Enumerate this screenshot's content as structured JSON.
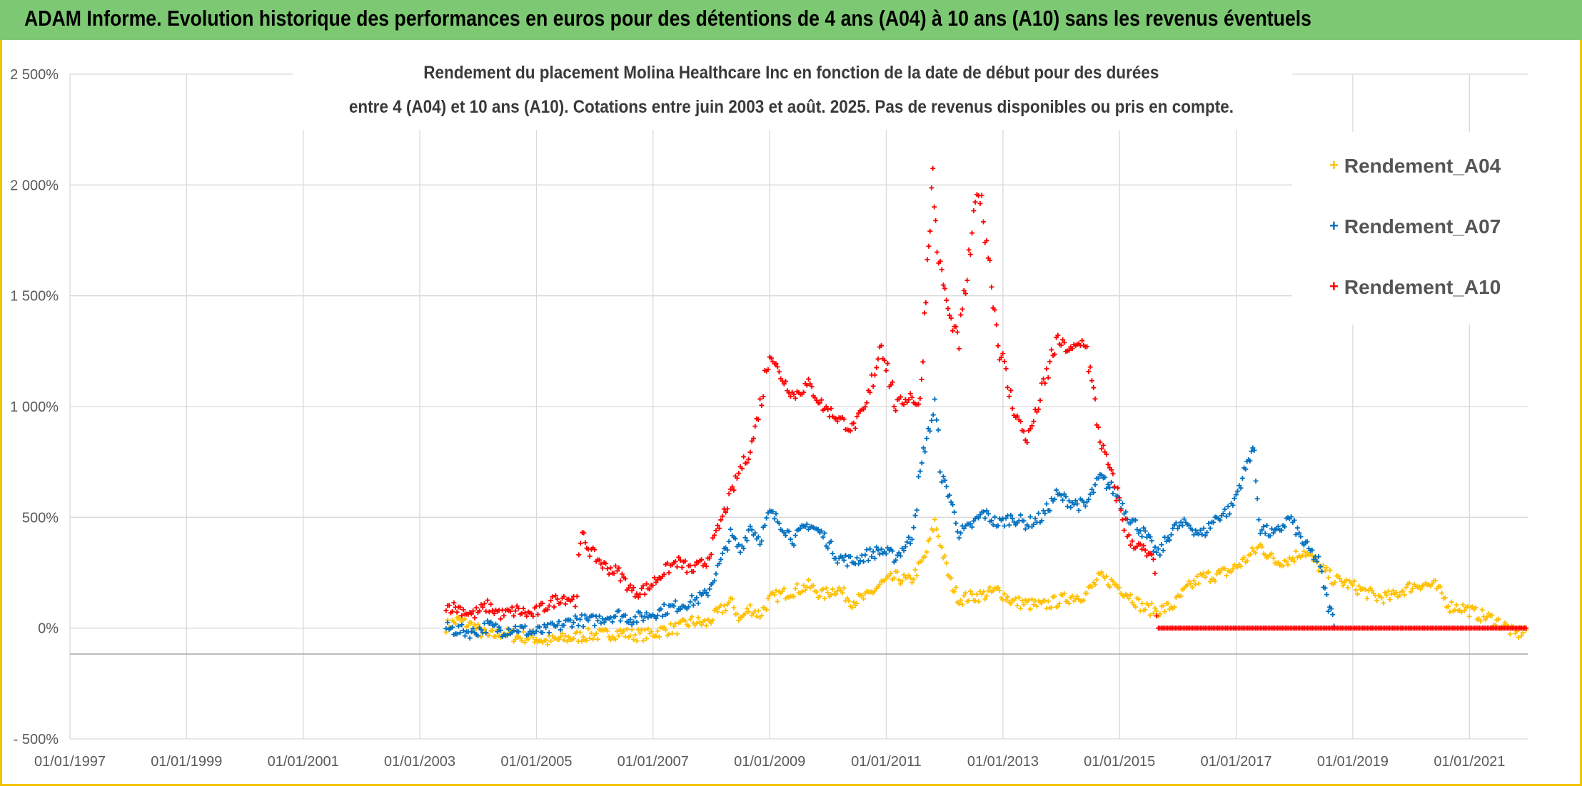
{
  "banner": {
    "title": "ADAM Informe. Evolution historique des performances en euros pour des détentions de 4 ans (A04) à 10 ans (A10) sans les revenus éventuels"
  },
  "colors": {
    "banner_bg": "#7dc873",
    "frame": "#f2c200",
    "grid": "#d9d9d9",
    "axis_text": "#595959"
  },
  "chart_data": {
    "type": "scatter",
    "title_lines": [
      "Rendement du placement Molina Healthcare Inc en fonction de la date de début pour des durées",
      "entre 4 (A04) et 10 ans (A10). Cotations entre juin 2003 et août. 2025. Pas de revenus disponibles ou pris en compte."
    ],
    "xlabel": "",
    "ylabel": "",
    "x_axis_type": "date",
    "xlim": [
      "1997-01-01",
      "2022-01-01"
    ],
    "ylim": [
      -500,
      2500
    ],
    "y_ticks": [
      -500,
      0,
      500,
      1000,
      1500,
      2000,
      2500
    ],
    "y_tick_labels": [
      "- 500%",
      "0%",
      "500%",
      "1 000%",
      "1 500%",
      "2 000%",
      "2 500%"
    ],
    "x_ticks": [
      "1997-01-01",
      "1999-01-01",
      "2001-01-01",
      "2003-01-01",
      "2005-01-01",
      "2007-01-01",
      "2009-01-01",
      "2011-01-01",
      "2013-01-01",
      "2015-01-01",
      "2017-01-01",
      "2019-01-01",
      "2021-01-01"
    ],
    "x_tick_labels": [
      "01/01/1997",
      "01/01/1999",
      "01/01/2001",
      "01/01/2003",
      "01/01/2005",
      "01/01/2007",
      "01/01/2009",
      "01/01/2011",
      "01/01/2013",
      "01/01/2015",
      "01/01/2017",
      "01/01/2019",
      "01/01/2021"
    ],
    "grid": true,
    "legend_position": "top-right",
    "marker": "+",
    "series": [
      {
        "name": "Rendement_A04",
        "color": "#ffc000",
        "points": [
          [
            "2003-06-15",
            10
          ],
          [
            "2003-09-01",
            35
          ],
          [
            "2003-12-01",
            10
          ],
          [
            "2004-03-01",
            -40
          ],
          [
            "2004-06-01",
            -20
          ],
          [
            "2004-09-01",
            -40
          ],
          [
            "2004-12-01",
            -40
          ],
          [
            "2005-03-01",
            -60
          ],
          [
            "2005-06-01",
            -50
          ],
          [
            "2005-09-01",
            -40
          ],
          [
            "2005-12-01",
            -30
          ],
          [
            "2006-03-01",
            -30
          ],
          [
            "2006-06-01",
            -20
          ],
          [
            "2006-09-01",
            -30
          ],
          [
            "2006-12-01",
            -30
          ],
          [
            "2007-03-01",
            -10
          ],
          [
            "2007-06-01",
            0
          ],
          [
            "2007-09-01",
            30
          ],
          [
            "2007-12-01",
            20
          ],
          [
            "2008-03-01",
            80
          ],
          [
            "2008-05-01",
            120
          ],
          [
            "2008-07-01",
            40
          ],
          [
            "2008-09-01",
            90
          ],
          [
            "2008-11-01",
            60
          ],
          [
            "2009-01-01",
            130
          ],
          [
            "2009-03-01",
            150
          ],
          [
            "2009-06-01",
            170
          ],
          [
            "2009-09-01",
            190
          ],
          [
            "2009-12-01",
            150
          ],
          [
            "2010-03-01",
            180
          ],
          [
            "2010-06-01",
            120
          ],
          [
            "2010-09-01",
            140
          ],
          [
            "2010-12-01",
            200
          ],
          [
            "2011-03-01",
            230
          ],
          [
            "2011-06-01",
            210
          ],
          [
            "2011-09-01",
            320
          ],
          [
            "2011-11-01",
            480
          ],
          [
            "2011-12-15",
            360
          ],
          [
            "2012-02-01",
            220
          ],
          [
            "2012-04-01",
            130
          ],
          [
            "2012-06-01",
            140
          ],
          [
            "2012-09-01",
            150
          ],
          [
            "2012-12-01",
            170
          ],
          [
            "2013-03-01",
            120
          ],
          [
            "2013-06-01",
            110
          ],
          [
            "2013-09-01",
            100
          ],
          [
            "2013-12-01",
            120
          ],
          [
            "2014-03-01",
            140
          ],
          [
            "2014-06-01",
            150
          ],
          [
            "2014-09-01",
            230
          ],
          [
            "2014-12-01",
            200
          ],
          [
            "2015-03-01",
            150
          ],
          [
            "2015-06-01",
            90
          ],
          [
            "2015-09-01",
            80
          ],
          [
            "2015-12-01",
            100
          ],
          [
            "2016-03-01",
            180
          ],
          [
            "2016-06-01",
            230
          ],
          [
            "2016-09-01",
            240
          ],
          [
            "2016-12-01",
            260
          ],
          [
            "2017-03-01",
            310
          ],
          [
            "2017-06-01",
            370
          ],
          [
            "2017-09-01",
            300
          ],
          [
            "2017-12-01",
            310
          ],
          [
            "2018-03-01",
            350
          ],
          [
            "2018-06-01",
            280
          ],
          [
            "2018-09-01",
            220
          ],
          [
            "2018-12-01",
            200
          ],
          [
            "2019-03-01",
            170
          ],
          [
            "2019-06-01",
            140
          ],
          [
            "2019-09-01",
            140
          ],
          [
            "2019-12-01",
            180
          ],
          [
            "2020-03-01",
            200
          ],
          [
            "2020-06-01",
            190
          ],
          [
            "2020-09-01",
            100
          ],
          [
            "2020-12-01",
            90
          ],
          [
            "2021-03-01",
            60
          ],
          [
            "2021-06-01",
            40
          ],
          [
            "2021-09-01",
            0
          ],
          [
            "2021-10-15",
            -30
          ],
          [
            "2021-12-31",
            0
          ]
        ]
      },
      {
        "name": "Rendement_A07",
        "color": "#0070c0",
        "points": [
          [
            "2003-06-15",
            0
          ],
          [
            "2003-09-01",
            -10
          ],
          [
            "2003-12-01",
            -20
          ],
          [
            "2004-03-01",
            10
          ],
          [
            "2004-06-01",
            -10
          ],
          [
            "2004-09-01",
            0
          ],
          [
            "2004-12-01",
            -20
          ],
          [
            "2005-03-01",
            -10
          ],
          [
            "2005-06-01",
            10
          ],
          [
            "2005-09-01",
            40
          ],
          [
            "2005-12-01",
            30
          ],
          [
            "2006-03-01",
            50
          ],
          [
            "2006-06-01",
            60
          ],
          [
            "2006-09-01",
            40
          ],
          [
            "2006-12-01",
            60
          ],
          [
            "2007-03-01",
            80
          ],
          [
            "2007-06-01",
            100
          ],
          [
            "2007-09-01",
            120
          ],
          [
            "2007-12-01",
            150
          ],
          [
            "2008-03-01",
            300
          ],
          [
            "2008-05-01",
            420
          ],
          [
            "2008-07-01",
            350
          ],
          [
            "2008-09-01",
            460
          ],
          [
            "2008-11-01",
            400
          ],
          [
            "2009-01-01",
            520
          ],
          [
            "2009-03-01",
            480
          ],
          [
            "2009-06-01",
            400
          ],
          [
            "2009-09-01",
            470
          ],
          [
            "2009-12-01",
            420
          ],
          [
            "2010-03-01",
            320
          ],
          [
            "2010-06-01",
            300
          ],
          [
            "2010-09-01",
            330
          ],
          [
            "2010-12-01",
            350
          ],
          [
            "2011-03-01",
            320
          ],
          [
            "2011-06-01",
            400
          ],
          [
            "2011-09-01",
            820
          ],
          [
            "2011-11-01",
            1000
          ],
          [
            "2011-12-15",
            680
          ],
          [
            "2012-02-01",
            600
          ],
          [
            "2012-04-01",
            430
          ],
          [
            "2012-06-01",
            450
          ],
          [
            "2012-09-01",
            520
          ],
          [
            "2012-12-01",
            470
          ],
          [
            "2013-03-01",
            500
          ],
          [
            "2013-06-01",
            470
          ],
          [
            "2013-09-01",
            500
          ],
          [
            "2013-12-01",
            600
          ],
          [
            "2014-03-01",
            570
          ],
          [
            "2014-06-01",
            550
          ],
          [
            "2014-09-01",
            680
          ],
          [
            "2014-12-01",
            620
          ],
          [
            "2015-03-01",
            500
          ],
          [
            "2015-06-01",
            430
          ],
          [
            "2015-09-01",
            330
          ],
          [
            "2015-12-01",
            450
          ],
          [
            "2016-03-01",
            470
          ],
          [
            "2016-06-01",
            420
          ],
          [
            "2016-09-01",
            500
          ],
          [
            "2016-12-01",
            540
          ],
          [
            "2017-03-01",
            720
          ],
          [
            "2017-04-15",
            820
          ],
          [
            "2017-06-01",
            450
          ],
          [
            "2017-09-01",
            420
          ],
          [
            "2017-12-01",
            500
          ],
          [
            "2018-03-01",
            380
          ],
          [
            "2018-06-01",
            300
          ],
          [
            "2018-08-01",
            100
          ],
          [
            "2018-09-15",
            20
          ]
        ]
      },
      {
        "name": "Rendement_A10",
        "color": "#ff0000",
        "points": [
          [
            "2003-06-15",
            100
          ],
          [
            "2003-09-01",
            90
          ],
          [
            "2003-12-01",
            60
          ],
          [
            "2004-03-01",
            100
          ],
          [
            "2004-06-01",
            60
          ],
          [
            "2004-09-01",
            80
          ],
          [
            "2004-12-01",
            60
          ],
          [
            "2005-03-01",
            100
          ],
          [
            "2005-06-01",
            140
          ],
          [
            "2005-09-01",
            130
          ],
          [
            "2005-10-15",
            420
          ],
          [
            "2005-12-01",
            350
          ],
          [
            "2006-03-01",
            280
          ],
          [
            "2006-06-01",
            250
          ],
          [
            "2006-09-01",
            160
          ],
          [
            "2006-12-01",
            180
          ],
          [
            "2007-03-01",
            250
          ],
          [
            "2007-06-01",
            300
          ],
          [
            "2007-09-01",
            260
          ],
          [
            "2007-12-01",
            300
          ],
          [
            "2008-03-01",
            480
          ],
          [
            "2008-05-01",
            600
          ],
          [
            "2008-07-01",
            720
          ],
          [
            "2008-09-01",
            800
          ],
          [
            "2008-11-01",
            1000
          ],
          [
            "2009-01-01",
            1250
          ],
          [
            "2009-03-01",
            1150
          ],
          [
            "2009-06-01",
            1050
          ],
          [
            "2009-09-01",
            1100
          ],
          [
            "2009-12-01",
            1000
          ],
          [
            "2010-03-01",
            950
          ],
          [
            "2010-06-01",
            900
          ],
          [
            "2010-09-01",
            1000
          ],
          [
            "2010-12-01",
            1300
          ],
          [
            "2011-03-01",
            1000
          ],
          [
            "2011-06-01",
            1050
          ],
          [
            "2011-08-01",
            1000
          ],
          [
            "2011-09-15",
            1650
          ],
          [
            "2011-10-20",
            2050
          ],
          [
            "2011-11-15",
            1700
          ],
          [
            "2011-12-15",
            1600
          ],
          [
            "2012-02-01",
            1400
          ],
          [
            "2012-04-01",
            1300
          ],
          [
            "2012-06-01",
            1650
          ],
          [
            "2012-08-01",
            2000
          ],
          [
            "2012-10-01",
            1700
          ],
          [
            "2012-12-01",
            1300
          ],
          [
            "2013-03-01",
            1000
          ],
          [
            "2013-06-01",
            850
          ],
          [
            "2013-09-01",
            1050
          ],
          [
            "2013-12-01",
            1300
          ],
          [
            "2014-03-01",
            1250
          ],
          [
            "2014-06-01",
            1300
          ],
          [
            "2014-09-01",
            850
          ],
          [
            "2014-12-01",
            650
          ],
          [
            "2015-03-01",
            400
          ],
          [
            "2015-06-01",
            350
          ],
          [
            "2015-08-01",
            300
          ],
          [
            "2015-09-01",
            0
          ],
          [
            "2016-06-01",
            0
          ],
          [
            "2017-06-01",
            0
          ],
          [
            "2018-06-01",
            0
          ],
          [
            "2019-06-01",
            0
          ],
          [
            "2020-06-01",
            0
          ],
          [
            "2021-06-01",
            0
          ],
          [
            "2021-12-31",
            0
          ]
        ]
      }
    ]
  }
}
